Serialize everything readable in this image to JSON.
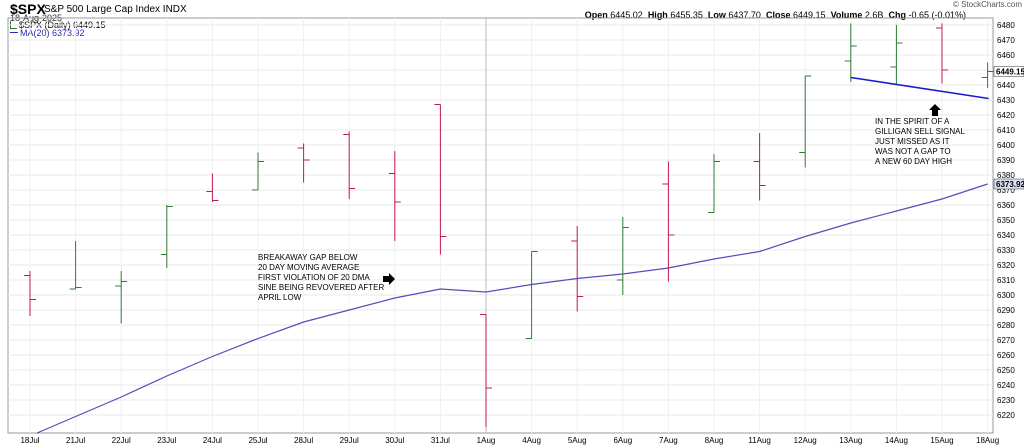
{
  "header": {
    "symbol": "$SPX",
    "name": "S&P 500 Large Cap Index",
    "exchange": "INDX",
    "date": "18-Aug-2025",
    "copyright": "© StockCharts.com",
    "legend_price": "$SPX (Daily) 6449.15",
    "legend_ma": "MA(20) 6373.92",
    "open_label": "Open",
    "open": "6445.02",
    "high_label": "High",
    "high": "6455.35",
    "low_label": "Low",
    "low": "6437.70",
    "close_label": "Close",
    "close": "6449.15",
    "volume_label": "Volume",
    "volume": "2.6B",
    "chg_label": "Chg",
    "chg": "-0.65 (-0.01%)"
  },
  "annotations": {
    "breakaway": "BREAKAWAY GAP BELOW\n20 DAY MOVING AVERAGE\nFIRST VIOLATION OF 20 DMA\nSINE BEING REVOVERED AFTER\nAPRIL LOW",
    "gilligan": "IN THE SPIRIT OF A\nGILLIGAN SELL SIGNAL\nJUST MISSED AS IT\nWAS NOT A GAP TO\nA NEW 60 DAY HIGH"
  },
  "colors": {
    "up": "#2e7d32",
    "down": "#c2185b",
    "ma": "#5050b8",
    "trendline": "#1a1ad0",
    "grid": "#e8e8e8"
  },
  "chart_data": {
    "type": "ohlc",
    "ylim": [
      6210,
      6485
    ],
    "yticks": [
      6220,
      6230,
      6240,
      6250,
      6260,
      6270,
      6280,
      6290,
      6300,
      6310,
      6320,
      6330,
      6340,
      6350,
      6360,
      6370,
      6380,
      6390,
      6400,
      6410,
      6420,
      6430,
      6440,
      6450,
      6460,
      6470,
      6480
    ],
    "last_price_label": "6449.15",
    "ma_label": "6373.92",
    "categories": [
      "18Jul",
      "21Jul",
      "22Jul",
      "23Jul",
      "24Jul",
      "25Jul",
      "28Jul",
      "29Jul",
      "30Jul",
      "31Jul",
      "1Aug",
      "4Aug",
      "5Aug",
      "6Aug",
      "7Aug",
      "8Aug",
      "11Aug",
      "12Aug",
      "13Aug",
      "14Aug",
      "15Aug",
      "18Aug"
    ],
    "ohlc": [
      {
        "o": 6313,
        "h": 6316,
        "l": 6286,
        "c": 6297
      },
      {
        "o": 6304,
        "h": 6336,
        "l": 6304,
        "c": 6305
      },
      {
        "o": 6306,
        "h": 6316,
        "l": 6281,
        "c": 6309
      },
      {
        "o": 6327,
        "h": 6360,
        "l": 6318,
        "c": 6359
      },
      {
        "o": 6369,
        "h": 6381,
        "l": 6362,
        "c": 6363
      },
      {
        "o": 6370,
        "h": 6395,
        "l": 6370,
        "c": 6389
      },
      {
        "o": 6398,
        "h": 6401,
        "l": 6375,
        "c": 6390
      },
      {
        "o": 6407,
        "h": 6409,
        "l": 6364,
        "c": 6371
      },
      {
        "o": 6381,
        "h": 6396,
        "l": 6336,
        "c": 6362
      },
      {
        "o": 6427,
        "h": 6427,
        "l": 6327,
        "c": 6339
      },
      {
        "o": 6287,
        "h": 6287,
        "l": 6212,
        "c": 6238
      },
      {
        "o": 6271,
        "h": 6329,
        "l": 6271,
        "c": 6329
      },
      {
        "o": 6336,
        "h": 6346,
        "l": 6289,
        "c": 6299
      },
      {
        "o": 6310,
        "h": 6352,
        "l": 6300,
        "c": 6345
      },
      {
        "o": 6374,
        "h": 6389,
        "l": 6309,
        "c": 6340
      },
      {
        "o": 6355,
        "h": 6394,
        "l": 6355,
        "c": 6389
      },
      {
        "o": 6389,
        "h": 6408,
        "l": 6363,
        "c": 6373
      },
      {
        "o": 6395,
        "h": 6446,
        "l": 6385,
        "c": 6446
      },
      {
        "o": 6456,
        "h": 6481,
        "l": 6442,
        "c": 6466
      },
      {
        "o": 6452,
        "h": 6480,
        "l": 6441,
        "c": 6468
      },
      {
        "o": 6478,
        "h": 6481,
        "l": 6441,
        "c": 6450
      },
      {
        "o": 6445,
        "h": 6455,
        "l": 6438,
        "c": 6449
      }
    ],
    "ma20": [
      null,
      6219,
      6232,
      6246,
      6259,
      6271,
      6282,
      6290,
      6298,
      6304,
      6302,
      6307,
      6311,
      6314,
      6318,
      6324,
      6329,
      6339,
      6348,
      6356,
      6364,
      6374
    ],
    "trendline": {
      "from": {
        "x": "13Aug",
        "y": 6445
      },
      "to": {
        "x": "18Aug",
        "y": 6431
      }
    }
  }
}
